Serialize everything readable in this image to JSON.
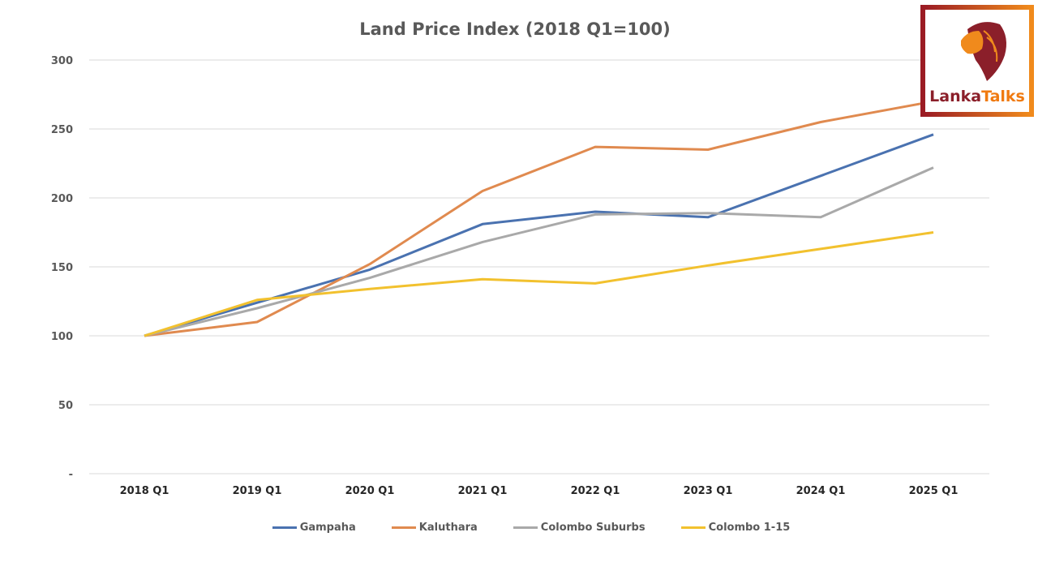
{
  "chart_data": {
    "type": "line",
    "title": "Land Price Index (2018 Q1=100)",
    "xlabel": "",
    "ylabel": "",
    "categories": [
      "2018 Q1",
      "2019 Q1",
      "2020 Q1",
      "2021 Q1",
      "2022 Q1",
      "2023 Q1",
      "2024 Q1",
      "2025 Q1"
    ],
    "ylim": [
      0,
      300
    ],
    "yticks": [
      0,
      50,
      100,
      150,
      200,
      250,
      300
    ],
    "ytick_labels": [
      "-",
      "50",
      "100",
      "150",
      "200",
      "250",
      "300"
    ],
    "grid": true,
    "legend_position": "bottom",
    "series": [
      {
        "name": "Gampaha",
        "color": "#4a72b0",
        "values": [
          100,
          124,
          148,
          181,
          190,
          186,
          216,
          246
        ]
      },
      {
        "name": "Kaluthara",
        "color": "#e08a4f",
        "values": [
          100,
          110,
          152,
          205,
          237,
          235,
          255,
          270
        ]
      },
      {
        "name": "Colombo Suburbs",
        "color": "#a9a9a9",
        "values": [
          100,
          120,
          142,
          168,
          188,
          189,
          186,
          222
        ]
      },
      {
        "name": "Colombo 1-15",
        "color": "#f2c12e",
        "values": [
          100,
          126,
          134,
          141,
          138,
          151,
          163,
          175
        ]
      }
    ]
  },
  "logo": {
    "text_part1": "Lanka",
    "text_part2": "Talks"
  }
}
